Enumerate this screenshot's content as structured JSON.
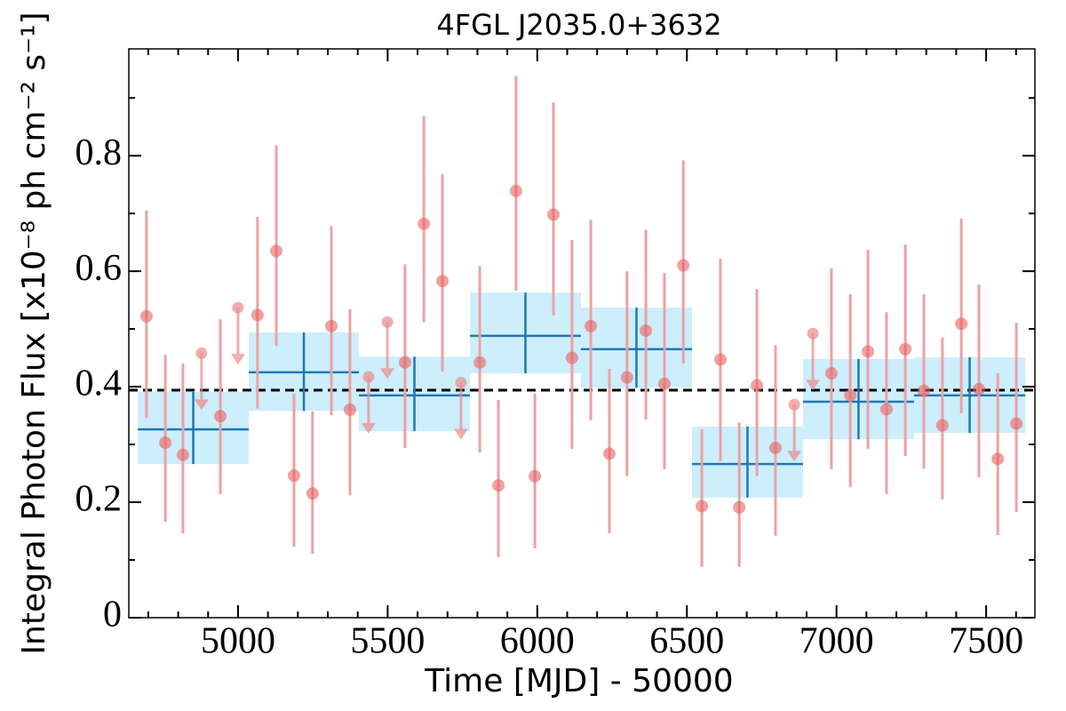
{
  "chart_data": {
    "type": "lightcurve",
    "title": "4FGL J2035.0+3632",
    "xlabel": "Time [MJD] - 50000",
    "ylabel": "Integral Photon Flux [x10⁻⁸ ph cm⁻² s⁻¹]",
    "xlim": [
      4635,
      7663
    ],
    "ylim": [
      0,
      0.985
    ],
    "xticks": [
      5000,
      5500,
      6000,
      6500,
      7000,
      7500
    ],
    "yticks": [
      0,
      0.2,
      0.4,
      0.6,
      0.8
    ],
    "xminorticks": [
      4700,
      4800,
      4900,
      5100,
      5200,
      5300,
      5400,
      5600,
      5700,
      5800,
      5900,
      6100,
      6200,
      6300,
      6400,
      6600,
      6700,
      6800,
      6900,
      7100,
      7200,
      7300,
      7400,
      7600
    ],
    "yminorticks": [
      0.1,
      0.3,
      0.5,
      0.7,
      0.9
    ],
    "points": {
      "color": "#e8605f",
      "error_color": "#eca2a2",
      "x": [
        4694,
        4757,
        4816,
        4941,
        5065,
        5128,
        5187,
        5249,
        5312,
        5374,
        5558,
        5621,
        5683,
        5808,
        5870,
        5929,
        5992,
        6054,
        6116,
        6179,
        6241,
        6300,
        6363,
        6425,
        6488,
        6550,
        6612,
        6675,
        6734,
        6796,
        6983,
        7046,
        7105,
        7167,
        7230,
        7292,
        7354,
        7417,
        7476,
        7539,
        7601
      ],
      "values": [
        0.522,
        0.303,
        0.282,
        0.349,
        0.524,
        0.635,
        0.246,
        0.215,
        0.505,
        0.36,
        0.442,
        0.682,
        0.583,
        0.442,
        0.229,
        0.739,
        0.245,
        0.698,
        0.45,
        0.505,
        0.284,
        0.416,
        0.497,
        0.405,
        0.61,
        0.193,
        0.447,
        0.191,
        0.402,
        0.294,
        0.423,
        0.385,
        0.461,
        0.361,
        0.465,
        0.393,
        0.333,
        0.509,
        0.396,
        0.275,
        0.336
      ],
      "lower": [
        0.346,
        0.166,
        0.146,
        0.214,
        0.362,
        0.471,
        0.123,
        0.111,
        0.351,
        0.212,
        0.294,
        0.512,
        0.426,
        0.286,
        0.105,
        0.566,
        0.12,
        0.523,
        0.292,
        0.342,
        0.146,
        0.245,
        0.343,
        0.257,
        0.44,
        0.088,
        0.271,
        0.088,
        0.245,
        0.142,
        0.257,
        0.226,
        0.292,
        0.214,
        0.28,
        0.258,
        0.205,
        0.354,
        0.243,
        0.143,
        0.183
      ],
      "upper": [
        0.705,
        0.455,
        0.44,
        0.517,
        0.694,
        0.818,
        0.388,
        0.357,
        0.678,
        0.534,
        0.612,
        0.869,
        0.768,
        0.609,
        0.377,
        0.938,
        0.388,
        0.892,
        0.654,
        0.689,
        0.431,
        0.6,
        0.672,
        0.597,
        0.792,
        0.326,
        0.622,
        0.338,
        0.569,
        0.472,
        0.605,
        0.56,
        0.637,
        0.529,
        0.646,
        0.56,
        0.485,
        0.691,
        0.577,
        0.423,
        0.511
      ]
    },
    "upper_limits": {
      "color": "#e88a8a",
      "x": [
        4878,
        5000,
        5436,
        5499,
        5745,
        6859,
        6921
      ],
      "values": [
        0.458,
        0.537,
        0.417,
        0.512,
        0.407,
        0.369,
        0.492
      ]
    },
    "bins": {
      "color": "#1f77b4",
      "fill": "#cdeefc",
      "x_start": [
        4665,
        5036,
        5404,
        5775,
        6146,
        6517,
        6888,
        7259
      ],
      "x_end": [
        5036,
        5404,
        5775,
        6146,
        6517,
        6888,
        7259,
        7631
      ],
      "values": [
        0.326,
        0.425,
        0.385,
        0.488,
        0.465,
        0.266,
        0.374,
        0.385
      ],
      "lower": [
        0.266,
        0.358,
        0.323,
        0.423,
        0.398,
        0.208,
        0.309,
        0.32
      ],
      "upper": [
        0.391,
        0.494,
        0.452,
        0.563,
        0.537,
        0.331,
        0.448,
        0.451
      ]
    },
    "mean": 0.394
  }
}
